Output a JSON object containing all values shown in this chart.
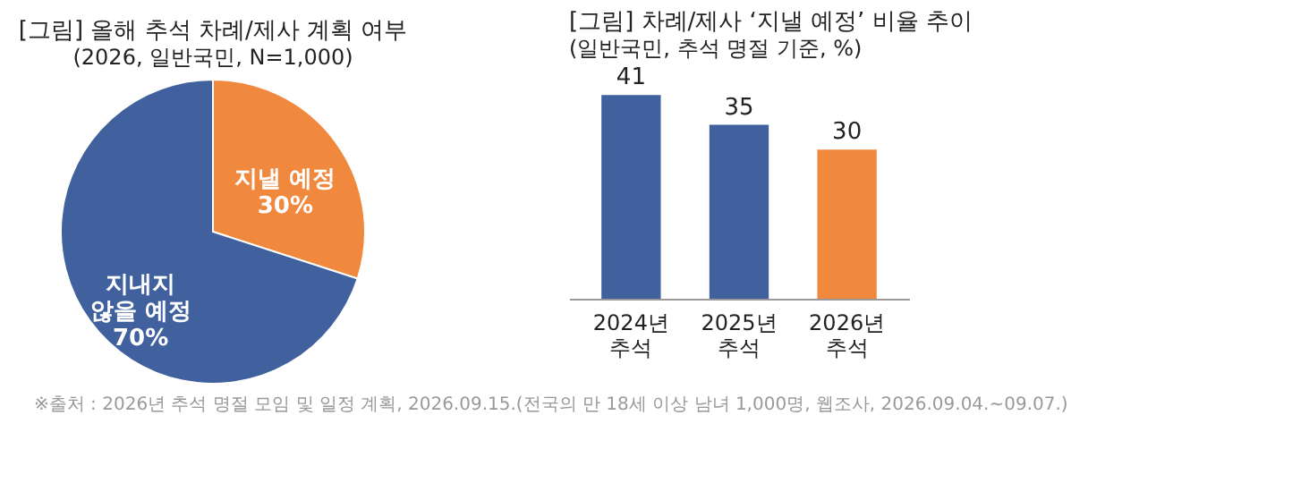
{
  "chart_data": [
    {
      "type": "pie",
      "title": "[그림] 올해 추석 차례/제사 계획 여부",
      "subtitle": "(2026, 일반국민, N=1,000)",
      "categories": [
        "지낼 예정",
        "지내지\n않을 예정"
      ],
      "values": [
        30,
        70
      ],
      "colors": [
        "#f0883e",
        "#41609e"
      ],
      "value_labels": [
        "30%",
        "70%"
      ],
      "legend": false
    },
    {
      "type": "bar",
      "title": "[그림] 차례/제사 ‘지낼 예정’ 비율 추이",
      "subtitle": "(일반국민, 추석 명절 기준, %)",
      "categories": [
        "2024년\n추석",
        "2025년\n추석",
        "2026년\n추석"
      ],
      "values": [
        41,
        35,
        30
      ],
      "colors": [
        "#41609e",
        "#41609e",
        "#f0883e"
      ],
      "data_labels": true,
      "annotations": [
        "※출처 : 2026년 추석 명절 모임 및 일정 계획, 2026.09.15.(전국의 만 18세 이상 남녀 1,000명, 웹조사, 2026.09.04.~09.07.)"
      ]
    }
  ]
}
